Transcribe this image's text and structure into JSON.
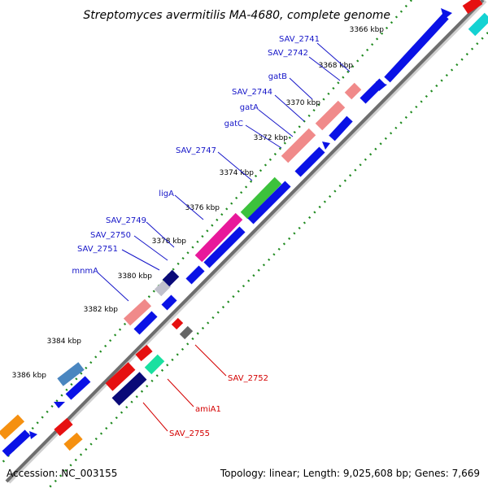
{
  "title": "Streptomyces avermitilis MA-4680, complete genome",
  "footer": {
    "accession": "Accession: NC_003155",
    "summary": "Topology: linear; Length: 9,025,608 bp; Genes: 7,669"
  },
  "tick_labels": [
    "3366 kbp",
    "3368 kbp",
    "3370 kbp",
    "3372 kbp",
    "3374 kbp",
    "3376 kbp",
    "3378 kbp",
    "3380 kbp",
    "3382 kbp",
    "3384 kbp",
    "3386 kbp"
  ],
  "gene_labels_upper": [
    "SAV_2741",
    "SAV_2742",
    "gatB",
    "SAV_2744",
    "gatA",
    "gatC",
    "SAV_2747",
    "ligA",
    "SAV_2749",
    "SAV_2750",
    "SAV_2751",
    "mnmA"
  ],
  "gene_labels_lower": [
    "SAV_2752",
    "amiA1",
    "SAV_2755"
  ],
  "colors": {
    "backbone": "#6e6e6e",
    "tick_ring": "#1f8a1f",
    "blue_gene": "#0a12e6",
    "label_blue": "#1515c8",
    "label_red": "#d40000",
    "pink": "#f08a8a",
    "green": "#3cc23c",
    "magenta": "#e8189a",
    "navy": "#0a0a78",
    "red": "#e61010",
    "teal": "#19e0a0",
    "steel": "#4a86c0",
    "orange": "#f59010",
    "cyan": "#14d2d2",
    "grey": "#c0c0cc"
  }
}
